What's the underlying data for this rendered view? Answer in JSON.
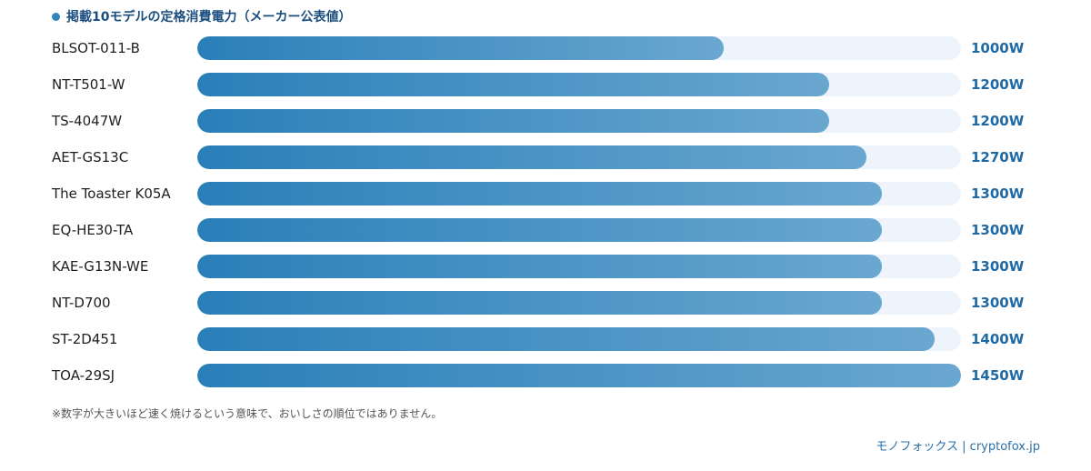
{
  "colors": {
    "bar_start": "#2a7fb9",
    "bar_end": "#6aa7d0",
    "track": "#eef4fb",
    "value_text": "#1f6aa3",
    "title_text": "#1b4e7e",
    "title_dot": "#2e86c1"
  },
  "title_marker_icon": "bullet-dot",
  "footnote": "※数字が大きいほど速く焼けるという意味で、おいしさの順位ではありません。",
  "credit": "モノフォックス | cryptofox.jp",
  "chart_data": {
    "type": "bar",
    "orientation": "horizontal",
    "title": "掲載10モデルの定格消費電力（メーカー公表値）",
    "xlabel": "",
    "ylabel": "",
    "xlim": [
      0,
      1450
    ],
    "grid": false,
    "unit": "W",
    "categories": [
      "BLSOT-011-B",
      "NT-T501-W",
      "TS-4047W",
      "AET-GS13C",
      "The Toaster K05A",
      "EQ-HE30-TA",
      "KAE-G13N-WE",
      "NT-D700",
      "ST-2D451",
      "TOA-29SJ"
    ],
    "values": [
      1000,
      1200,
      1200,
      1270,
      1300,
      1300,
      1300,
      1300,
      1400,
      1450
    ],
    "value_labels": [
      "1000W",
      "1200W",
      "1200W",
      "1270W",
      "1300W",
      "1300W",
      "1300W",
      "1300W",
      "1400W",
      "1450W"
    ]
  }
}
